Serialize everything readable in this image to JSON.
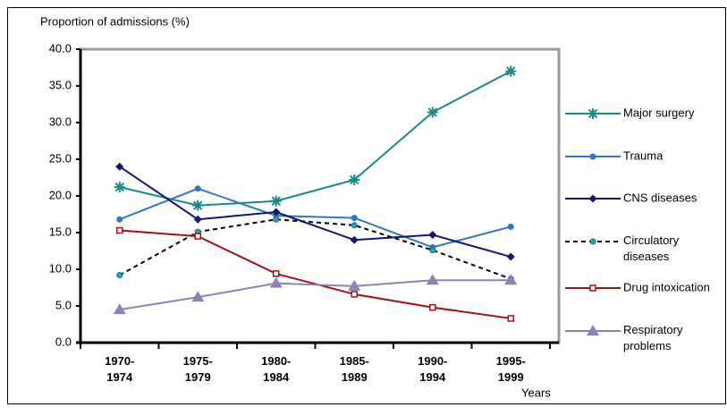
{
  "chart_data": {
    "type": "line",
    "y_label": "Proportion of admissions (%)",
    "x_label": "Years",
    "categories": [
      "1970-1974",
      "1975-1979",
      "1980-1984",
      "1985-1989",
      "1990-1994",
      "1995-1999"
    ],
    "ylim": [
      0,
      40
    ],
    "yticks": [
      {
        "value": 0,
        "label": "0.0"
      },
      {
        "value": 5,
        "label": "5.0"
      },
      {
        "value": 10,
        "label": "10.0"
      },
      {
        "value": 15,
        "label": "15.0"
      },
      {
        "value": 20,
        "label": "20.0"
      },
      {
        "value": 25,
        "label": "25.0"
      },
      {
        "value": 30,
        "label": "30.0"
      },
      {
        "value": 35,
        "label": "35.0"
      },
      {
        "value": 40,
        "label": "40.0"
      }
    ],
    "legend": "right",
    "series": [
      {
        "name": "Major surgery",
        "color": "#1a8a88",
        "marker": "star",
        "dash": false,
        "values": [
          21.2,
          18.7,
          19.3,
          22.2,
          31.4,
          37.0
        ]
      },
      {
        "name": "Trauma",
        "color": "#2f78c8",
        "marker": "circle",
        "dash": false,
        "values": [
          16.8,
          21.0,
          17.3,
          17.0,
          13.0,
          15.8
        ]
      },
      {
        "name": "CNS diseases",
        "color": "#14147a",
        "marker": "diamond",
        "dash": false,
        "values": [
          24.0,
          16.8,
          17.8,
          14.0,
          14.7,
          11.7
        ]
      },
      {
        "name": "Circulatory diseases",
        "color": "#000000",
        "marker": "circle",
        "dash": true,
        "values": [
          9.2,
          15.1,
          16.8,
          16.0,
          12.6,
          8.7
        ]
      },
      {
        "name": "Drug intoxication",
        "color": "#a01414",
        "marker": "square",
        "dash": false,
        "values": [
          15.3,
          14.5,
          9.4,
          6.6,
          4.8,
          3.3
        ]
      },
      {
        "name": "Respiratory problems",
        "color": "#8884b8",
        "marker": "triangle",
        "dash": false,
        "values": [
          4.5,
          6.2,
          8.1,
          7.7,
          8.5,
          8.5
        ]
      }
    ]
  }
}
